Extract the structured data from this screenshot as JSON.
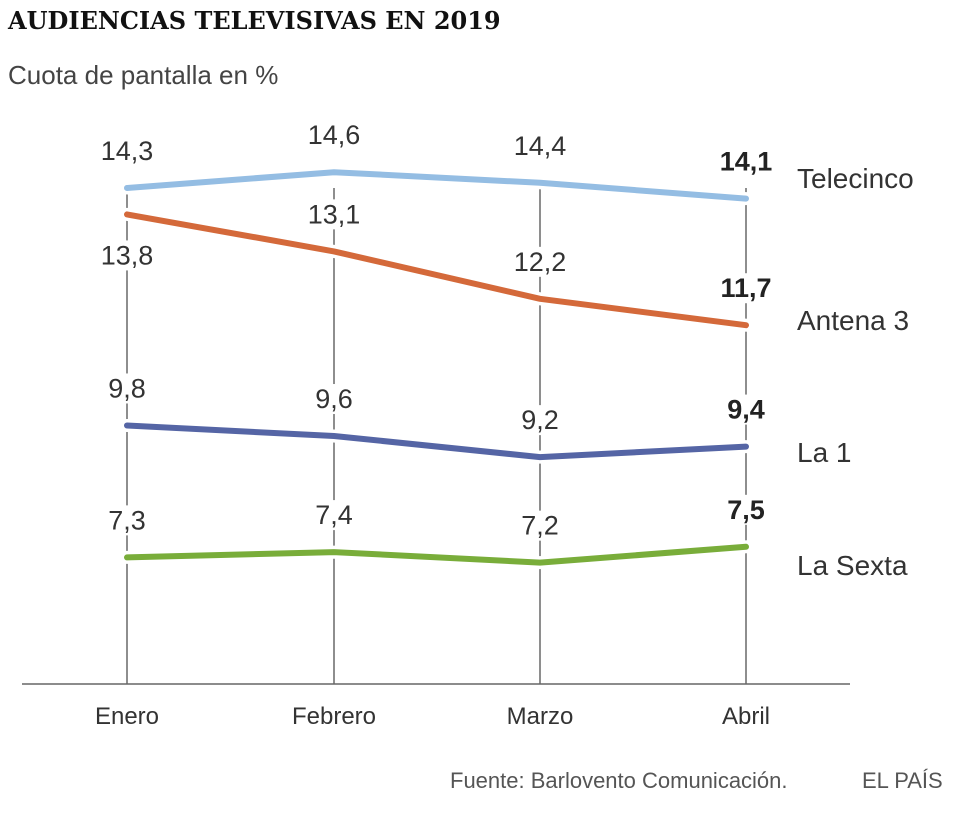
{
  "header": {
    "title": "AUDIENCIAS TELEVISIVAS EN 2019",
    "subtitle": "Cuota de pantalla en %"
  },
  "footer": {
    "source": "Fuente: Barlovento Comunicación.",
    "brand": "EL PAÍS"
  },
  "chart_data": {
    "type": "line",
    "title": "AUDIENCIAS TELEVISIVAS EN 2019",
    "subtitle": "Cuota de pantalla en %",
    "categories": [
      "Enero",
      "Febrero",
      "Marzo",
      "Abril"
    ],
    "ylim": [
      4.9,
      15.4
    ],
    "grid": false,
    "legend": "labels at right end of each line",
    "series": [
      {
        "name": "Telecinco",
        "color": "#94bde3",
        "values": [
          14.3,
          14.6,
          14.4,
          14.1
        ],
        "labels": [
          "14,3",
          "14,6",
          "14,4",
          "14,1"
        ]
      },
      {
        "name": "Antena 3",
        "color": "#d4693a",
        "values": [
          13.8,
          13.1,
          12.2,
          11.7
        ],
        "labels": [
          "13,8",
          "13,1",
          "12,2",
          "11,7"
        ]
      },
      {
        "name": "La 1",
        "color": "#5565a5",
        "values": [
          9.8,
          9.6,
          9.2,
          9.4
        ],
        "labels": [
          "9,8",
          "9,6",
          "9,2",
          "9,4"
        ]
      },
      {
        "name": "La Sexta",
        "color": "#79ad3a",
        "values": [
          7.3,
          7.4,
          7.2,
          7.5
        ],
        "labels": [
          "7,3",
          "7,4",
          "7,2",
          "7,5"
        ]
      }
    ]
  }
}
